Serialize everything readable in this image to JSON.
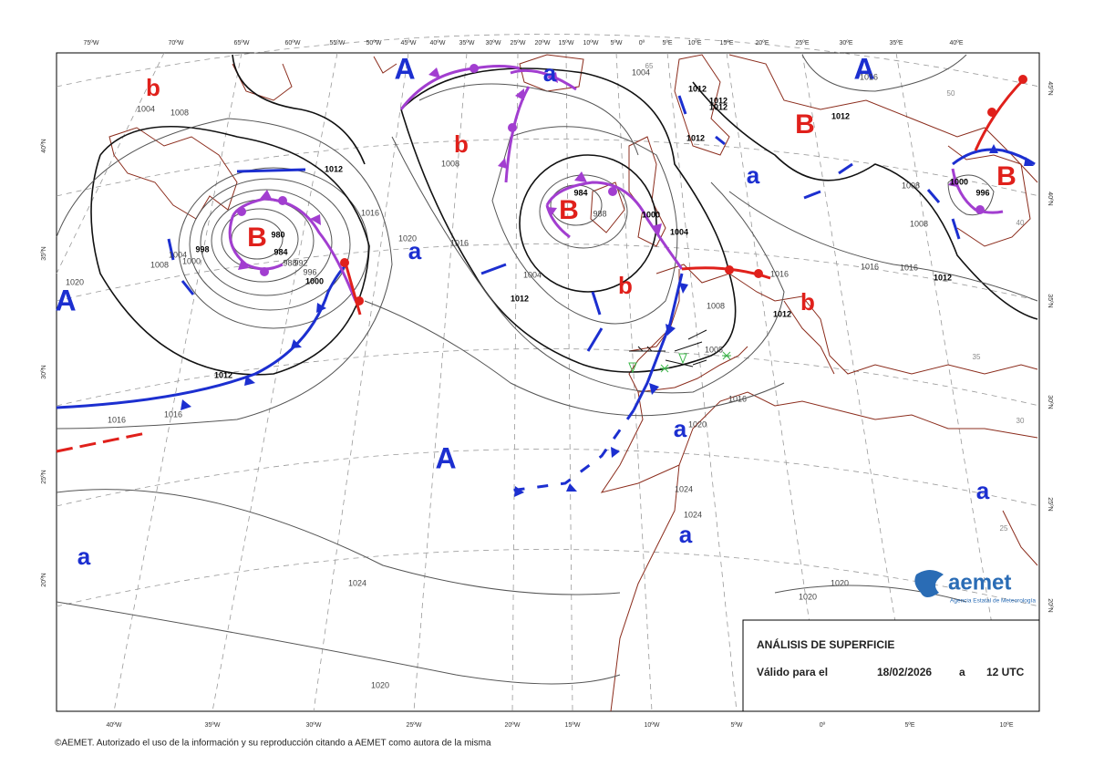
{
  "map": {
    "top_longitudes": [
      "75ºW",
      "70ºW",
      "65ºW",
      "60ºW",
      "55ºW",
      "50ºW",
      "45ºW",
      "40ºW",
      "35ºW",
      "30ºW",
      "25ºW",
      "20ºW",
      "15ºW",
      "10ºW",
      "5ºW",
      "0º",
      "5ºE",
      "10ºE",
      "15ºE",
      "20ºE",
      "25ºE",
      "30ºE",
      "35ºE",
      "40ºE"
    ],
    "bottom_longitudes": [
      "40ºW",
      "35ºW",
      "30ºW",
      "25ºW",
      "20ºW",
      "15ºW",
      "10ºW",
      "5ºW",
      "0º",
      "5ºE",
      "10ºE"
    ],
    "left_latitudes": [
      "40ºN",
      "35ºN",
      "30ºN",
      "25ºN",
      "20ºN"
    ],
    "right_latitudes": [
      "45ºN",
      "40ºN",
      "35ºN",
      "30ºN",
      "25ºN",
      "20ºN"
    ],
    "lows": {
      "color": "#e0201b",
      "labels": [
        "b",
        "B",
        "b",
        "B",
        "b",
        "B",
        "B",
        "b"
      ]
    },
    "highs": {
      "color": "#1c2fd0",
      "labels": [
        "A",
        "a",
        "A",
        "a",
        "a",
        "A",
        "A",
        "a",
        "a",
        "a",
        "a"
      ]
    },
    "isobar_labels": [
      1004,
      1008,
      1012,
      1016,
      1020,
      980,
      984,
      988,
      992,
      996,
      1000,
      1004,
      1000,
      1008,
      998,
      1012,
      1016,
      1016,
      1020,
      1016,
      1008,
      1004,
      1012,
      984,
      988,
      1000,
      1004,
      1016,
      1012,
      1008,
      1008,
      1016,
      1020,
      1024,
      1024,
      1024,
      1020,
      1020,
      1020,
      1004,
      1012,
      1012,
      1012,
      1012,
      1016,
      1012,
      1008,
      1008,
      1016,
      1016,
      1012,
      996,
      1000
    ],
    "faint_labels": [
      65,
      50,
      40,
      35,
      30,
      25
    ]
  },
  "info_box": {
    "title": "ANÁLISIS DE SUPERFICIE",
    "valid_label": "Válido para el",
    "date": "18/02/2026",
    "at": "a",
    "time": "12 UTC"
  },
  "logo": {
    "name": "aemet",
    "subtitle": "Agencia Estatal de Meteorología"
  },
  "footer": "©AEMET. Autorizado el uso de la información y su reproducción citando a AEMET como autora de la misma"
}
